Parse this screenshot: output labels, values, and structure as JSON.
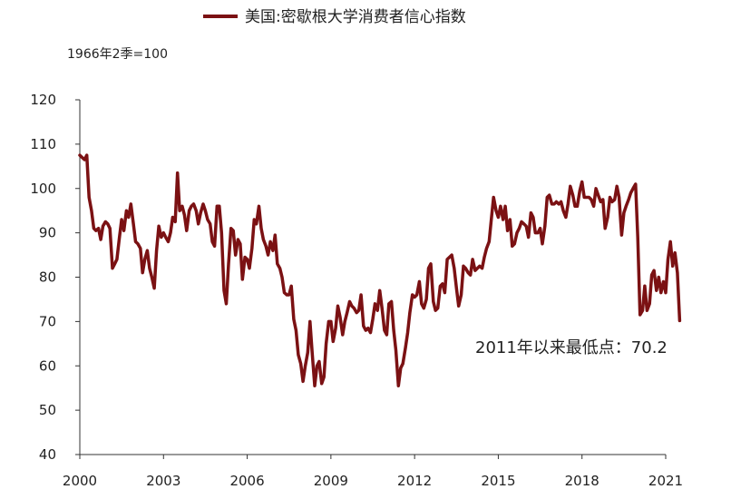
{
  "chart_data": {
    "type": "line",
    "title": "",
    "legend": {
      "entries": [
        "美国:密歇根大学消费者信心指数"
      ],
      "placement": "top-center"
    },
    "unit_note": "1966年2季=100",
    "xlabel": "",
    "ylabel": "",
    "ylim": [
      40,
      120
    ],
    "y_ticks": [
      40,
      50,
      60,
      70,
      80,
      90,
      100,
      110,
      120
    ],
    "xlim": [
      2000,
      2021
    ],
    "x_ticks": [
      "2000",
      "2003",
      "2006",
      "2009",
      "2012",
      "2015",
      "2018",
      "2021"
    ],
    "grid": false,
    "series": [
      {
        "name": "美国:密歇根大学消费者信心指数",
        "color": "#7b1113",
        "points": [
          [
            2000.0,
            107.5
          ],
          [
            2000.08,
            107.0
          ],
          [
            2000.17,
            106.5
          ],
          [
            2000.25,
            107.5
          ],
          [
            2000.33,
            98.0
          ],
          [
            2000.42,
            95.0
          ],
          [
            2000.5,
            91.0
          ],
          [
            2000.58,
            90.5
          ],
          [
            2000.67,
            91.0
          ],
          [
            2000.75,
            88.5
          ],
          [
            2000.83,
            91.5
          ],
          [
            2000.92,
            92.5
          ],
          [
            2001.0,
            92.0
          ],
          [
            2001.08,
            91.0
          ],
          [
            2001.17,
            82.0
          ],
          [
            2001.25,
            83.0
          ],
          [
            2001.33,
            84.0
          ],
          [
            2001.42,
            89.0
          ],
          [
            2001.5,
            93.0
          ],
          [
            2001.58,
            90.5
          ],
          [
            2001.67,
            95.0
          ],
          [
            2001.75,
            93.5
          ],
          [
            2001.83,
            96.5
          ],
          [
            2001.92,
            92.0
          ],
          [
            2002.0,
            88.0
          ],
          [
            2002.08,
            87.5
          ],
          [
            2002.17,
            86.5
          ],
          [
            2002.25,
            81.0
          ],
          [
            2002.33,
            84.0
          ],
          [
            2002.42,
            86.0
          ],
          [
            2002.5,
            82.0
          ],
          [
            2002.58,
            80.0
          ],
          [
            2002.67,
            77.5
          ],
          [
            2002.75,
            86.0
          ],
          [
            2002.83,
            91.5
          ],
          [
            2002.92,
            89.0
          ],
          [
            2003.0,
            90.0
          ],
          [
            2003.08,
            89.0
          ],
          [
            2003.17,
            88.0
          ],
          [
            2003.25,
            90.0
          ],
          [
            2003.33,
            93.5
          ],
          [
            2003.42,
            92.5
          ],
          [
            2003.5,
            103.5
          ],
          [
            2003.58,
            95.0
          ],
          [
            2003.67,
            96.0
          ],
          [
            2003.75,
            94.0
          ],
          [
            2003.83,
            90.5
          ],
          [
            2003.92,
            95.0
          ],
          [
            2004.0,
            96.0
          ],
          [
            2004.08,
            96.5
          ],
          [
            2004.17,
            95.0
          ],
          [
            2004.25,
            92.0
          ],
          [
            2004.33,
            94.5
          ],
          [
            2004.42,
            96.5
          ],
          [
            2004.5,
            95.0
          ],
          [
            2004.58,
            93.0
          ],
          [
            2004.67,
            92.0
          ],
          [
            2004.75,
            88.0
          ],
          [
            2004.83,
            87.0
          ],
          [
            2004.92,
            96.0
          ],
          [
            2005.0,
            96.0
          ],
          [
            2005.08,
            90.0
          ],
          [
            2005.17,
            77.0
          ],
          [
            2005.25,
            74.0
          ],
          [
            2005.33,
            83.0
          ],
          [
            2005.42,
            91.0
          ],
          [
            2005.5,
            90.5
          ],
          [
            2005.58,
            85.0
          ],
          [
            2005.67,
            88.5
          ],
          [
            2005.75,
            87.5
          ],
          [
            2005.83,
            79.5
          ],
          [
            2005.92,
            84.5
          ],
          [
            2006.0,
            84.0
          ],
          [
            2006.08,
            82.0
          ],
          [
            2006.17,
            86.5
          ],
          [
            2006.25,
            93.0
          ],
          [
            2006.33,
            92.0
          ],
          [
            2006.42,
            96.0
          ],
          [
            2006.5,
            91.0
          ],
          [
            2006.58,
            88.5
          ],
          [
            2006.67,
            87.0
          ],
          [
            2006.75,
            85.0
          ],
          [
            2006.83,
            88.0
          ],
          [
            2006.92,
            86.0
          ],
          [
            2007.0,
            89.5
          ],
          [
            2007.08,
            83.0
          ],
          [
            2007.17,
            82.0
          ],
          [
            2007.25,
            80.0
          ],
          [
            2007.33,
            76.5
          ],
          [
            2007.42,
            76.0
          ],
          [
            2007.5,
            76.0
          ],
          [
            2007.58,
            78.0
          ],
          [
            2007.67,
            70.5
          ],
          [
            2007.75,
            68.0
          ],
          [
            2007.83,
            62.5
          ],
          [
            2007.92,
            60.5
          ],
          [
            2008.0,
            56.5
          ],
          [
            2008.08,
            60.0
          ],
          [
            2008.17,
            63.0
          ],
          [
            2008.25,
            70.0
          ],
          [
            2008.33,
            63.0
          ],
          [
            2008.42,
            55.5
          ],
          [
            2008.5,
            60.0
          ],
          [
            2008.58,
            61.0
          ],
          [
            2008.67,
            56.0
          ],
          [
            2008.75,
            57.5
          ],
          [
            2008.83,
            65.0
          ],
          [
            2008.92,
            70.0
          ],
          [
            2009.0,
            70.0
          ],
          [
            2009.08,
            65.5
          ],
          [
            2009.17,
            68.5
          ],
          [
            2009.25,
            73.5
          ],
          [
            2009.33,
            71.0
          ],
          [
            2009.42,
            67.0
          ],
          [
            2009.5,
            70.0
          ],
          [
            2009.58,
            72.0
          ],
          [
            2009.67,
            74.5
          ],
          [
            2009.75,
            73.5
          ],
          [
            2009.83,
            73.0
          ],
          [
            2009.92,
            72.0
          ],
          [
            2010.0,
            72.5
          ],
          [
            2010.08,
            76.0
          ],
          [
            2010.17,
            69.0
          ],
          [
            2010.25,
            68.0
          ],
          [
            2010.33,
            68.5
          ],
          [
            2010.42,
            67.5
          ],
          [
            2010.5,
            70.5
          ],
          [
            2010.58,
            74.0
          ],
          [
            2010.67,
            72.5
          ],
          [
            2010.75,
            77.0
          ],
          [
            2010.83,
            73.0
          ],
          [
            2010.92,
            68.0
          ],
          [
            2011.0,
            67.0
          ],
          [
            2011.08,
            74.0
          ],
          [
            2011.17,
            74.5
          ],
          [
            2011.25,
            68.0
          ],
          [
            2011.33,
            63.5
          ],
          [
            2011.42,
            55.5
          ],
          [
            2011.5,
            59.5
          ],
          [
            2011.58,
            60.5
          ],
          [
            2011.67,
            64.0
          ],
          [
            2011.75,
            67.5
          ],
          [
            2011.83,
            72.0
          ],
          [
            2011.92,
            76.0
          ],
          [
            2012.0,
            75.5
          ],
          [
            2012.08,
            76.0
          ],
          [
            2012.17,
            79.0
          ],
          [
            2012.25,
            74.0
          ],
          [
            2012.33,
            73.0
          ],
          [
            2012.42,
            75.0
          ],
          [
            2012.5,
            82.0
          ],
          [
            2012.58,
            83.0
          ],
          [
            2012.67,
            74.5
          ],
          [
            2012.75,
            72.5
          ],
          [
            2012.83,
            73.0
          ],
          [
            2012.92,
            78.0
          ],
          [
            2013.0,
            78.5
          ],
          [
            2013.08,
            76.5
          ],
          [
            2013.17,
            84.0
          ],
          [
            2013.25,
            84.5
          ],
          [
            2013.33,
            85.0
          ],
          [
            2013.42,
            82.0
          ],
          [
            2013.5,
            77.5
          ],
          [
            2013.58,
            73.5
          ],
          [
            2013.67,
            76.0
          ],
          [
            2013.75,
            82.5
          ],
          [
            2013.83,
            82.0
          ],
          [
            2013.92,
            81.0
          ],
          [
            2014.0,
            80.5
          ],
          [
            2014.08,
            84.0
          ],
          [
            2014.17,
            81.5
          ],
          [
            2014.25,
            82.0
          ],
          [
            2014.33,
            82.5
          ],
          [
            2014.42,
            82.0
          ],
          [
            2014.5,
            84.5
          ],
          [
            2014.58,
            86.5
          ],
          [
            2014.67,
            88.0
          ],
          [
            2014.75,
            93.0
          ],
          [
            2014.83,
            98.0
          ],
          [
            2014.92,
            95.0
          ],
          [
            2015.0,
            93.5
          ],
          [
            2015.08,
            96.0
          ],
          [
            2015.17,
            93.0
          ],
          [
            2015.25,
            96.0
          ],
          [
            2015.33,
            90.5
          ],
          [
            2015.42,
            93.0
          ],
          [
            2015.5,
            87.0
          ],
          [
            2015.58,
            87.5
          ],
          [
            2015.67,
            90.0
          ],
          [
            2015.75,
            91.0
          ],
          [
            2015.83,
            92.5
          ],
          [
            2015.92,
            92.0
          ],
          [
            2016.0,
            91.5
          ],
          [
            2016.08,
            89.0
          ],
          [
            2016.17,
            94.5
          ],
          [
            2016.25,
            93.5
          ],
          [
            2016.33,
            90.0
          ],
          [
            2016.42,
            90.0
          ],
          [
            2016.5,
            91.0
          ],
          [
            2016.58,
            87.5
          ],
          [
            2016.67,
            91.5
          ],
          [
            2016.75,
            98.0
          ],
          [
            2016.83,
            98.5
          ],
          [
            2016.92,
            96.5
          ],
          [
            2017.0,
            96.5
          ],
          [
            2017.08,
            97.0
          ],
          [
            2017.17,
            96.5
          ],
          [
            2017.25,
            97.0
          ],
          [
            2017.33,
            95.0
          ],
          [
            2017.42,
            93.5
          ],
          [
            2017.5,
            96.5
          ],
          [
            2017.58,
            100.5
          ],
          [
            2017.67,
            98.5
          ],
          [
            2017.75,
            96.0
          ],
          [
            2017.83,
            96.0
          ],
          [
            2017.92,
            99.5
          ],
          [
            2018.0,
            101.5
          ],
          [
            2018.08,
            98.0
          ],
          [
            2018.17,
            98.0
          ],
          [
            2018.25,
            98.0
          ],
          [
            2018.33,
            97.5
          ],
          [
            2018.42,
            96.0
          ],
          [
            2018.5,
            100.0
          ],
          [
            2018.58,
            98.5
          ],
          [
            2018.67,
            97.0
          ],
          [
            2018.75,
            97.5
          ],
          [
            2018.83,
            91.0
          ],
          [
            2018.92,
            93.5
          ],
          [
            2019.0,
            98.0
          ],
          [
            2019.08,
            97.0
          ],
          [
            2019.17,
            97.5
          ],
          [
            2019.25,
            100.5
          ],
          [
            2019.33,
            98.0
          ],
          [
            2019.42,
            89.5
          ],
          [
            2019.5,
            94.5
          ],
          [
            2019.58,
            96.0
          ],
          [
            2019.67,
            97.5
          ],
          [
            2019.75,
            99.0
          ],
          [
            2019.83,
            100.0
          ],
          [
            2019.92,
            101.0
          ],
          [
            2020.0,
            89.0
          ],
          [
            2020.08,
            71.5
          ],
          [
            2020.17,
            72.5
          ],
          [
            2020.25,
            78.0
          ],
          [
            2020.33,
            72.5
          ],
          [
            2020.42,
            74.0
          ],
          [
            2020.5,
            80.5
          ],
          [
            2020.58,
            81.5
          ],
          [
            2020.67,
            77.0
          ],
          [
            2020.75,
            80.0
          ],
          [
            2020.83,
            76.5
          ],
          [
            2020.92,
            79.0
          ],
          [
            2021.0,
            76.5
          ],
          [
            2021.08,
            84.0
          ],
          [
            2021.17,
            88.0
          ],
          [
            2021.25,
            82.5
          ],
          [
            2021.33,
            85.5
          ],
          [
            2021.42,
            81.0
          ],
          [
            2021.5,
            70.2
          ]
        ]
      }
    ],
    "annotations": [
      {
        "text": "2011年以来最低点：70.2"
      }
    ]
  }
}
